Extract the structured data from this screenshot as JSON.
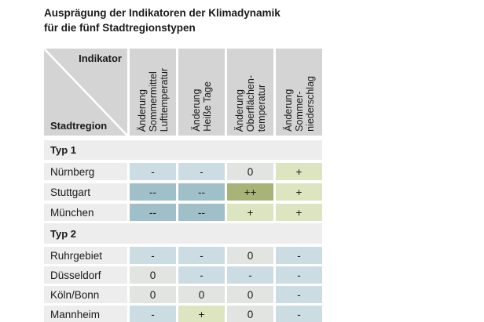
{
  "title": "Ausprägung der Indikatoren der Klimadynamik\nfür die fünf Stadtregionstypen",
  "chart_data": {
    "type": "table",
    "title": "Ausprägung der Indikatoren der Klimadynamik für die fünf Stadtregionstypen",
    "corner": {
      "top_right": "Indikator",
      "bottom_left": "Stadtregion"
    },
    "columns": [
      "Änderung\nSommermittel\nLufttemperatur",
      "Änderung\nHeiße Tage",
      "Änderung\nOberflächen-\ntemperatur",
      "Änderung\nSommer-\nniederschlag"
    ],
    "value_scale": [
      "--",
      "-",
      "0",
      "+",
      "++"
    ],
    "groups": [
      {
        "label": "Typ 1",
        "rows": [
          {
            "label": "Nürnberg",
            "values": [
              "-",
              "-",
              "0",
              "+"
            ]
          },
          {
            "label": "Stuttgart",
            "values": [
              "--",
              "--",
              "++",
              "+"
            ]
          },
          {
            "label": "München",
            "values": [
              "--",
              "--",
              "+",
              "+"
            ]
          }
        ]
      },
      {
        "label": "Typ 2",
        "rows": [
          {
            "label": "Ruhrgebiet",
            "values": [
              "-",
              "-",
              "0",
              "-"
            ]
          },
          {
            "label": "Düsseldorf",
            "values": [
              "0",
              "-",
              "-",
              "-"
            ]
          },
          {
            "label": "Köln/Bonn",
            "values": [
              "0",
              "0",
              "0",
              "-"
            ]
          },
          {
            "label": "Mannheim",
            "values": [
              "-",
              "+",
              "0",
              "-"
            ]
          }
        ]
      }
    ]
  },
  "colors": {
    "neg1": "#cbdde3",
    "neg2": "#9fc0c9",
    "zero": "#e1e4e1",
    "pos1": "#dce5c0",
    "pos2": "#a8b377",
    "header-bg": "#d4d4d4",
    "label-bg": "#ededed",
    "text": "#1a1a1a"
  }
}
